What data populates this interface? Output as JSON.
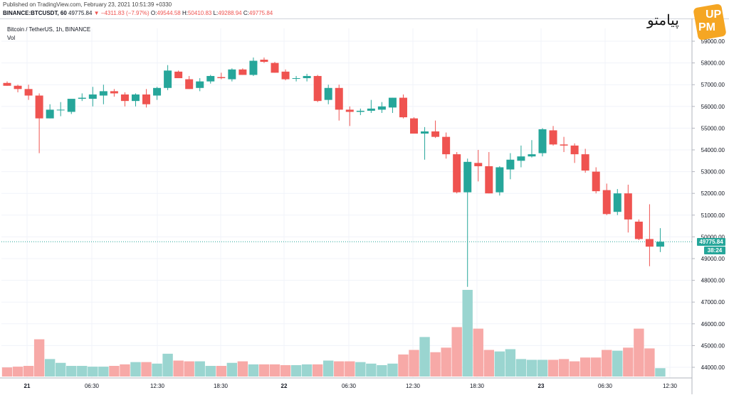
{
  "header": {
    "published": "Published on TradingView.com, February 23, 2021 10:51:39 +0330",
    "symbol": "BINANCE:BTCUSDT, 60",
    "last": "49775.84",
    "change": "▼ −4311.83 (−7.97%)",
    "open_label": "O:",
    "open": "49544.58",
    "high_label": "H:",
    "high": "50410.83",
    "low_label": "L:",
    "low": "49288.94",
    "close_label": "C:",
    "close": "49775.84"
  },
  "chart_title": "Bitcoin / TetherUS, 1h, BINANCE",
  "volume_label": "Vol",
  "price_badge": "49775.84",
  "countdown_badge": "38:24",
  "logo_text": "پیامتو",
  "logo_badge_top": "UP",
  "logo_badge_bottom": "PM",
  "colors": {
    "up": "#26a69a",
    "down": "#ef5350",
    "up_vol": "#9ad5d0",
    "down_vol": "#f7a9a7",
    "grid": "#f0f3fa",
    "axis_text": "#131722"
  },
  "chart_data": {
    "type": "candlestick",
    "y_ticks": [
      "59000.00",
      "58000.00",
      "57000.00",
      "56000.00",
      "55000.00",
      "54000.00",
      "53000.00",
      "52000.00",
      "51000.00",
      "50000.00",
      "49000.00",
      "48000.00",
      "47000.00",
      "46000.00",
      "45000.00",
      "44000.00"
    ],
    "x_ticks": [
      "21",
      "06:30",
      "12:30",
      "18:30",
      "22",
      "06:30",
      "12:30",
      "18:30",
      "23",
      "06:30",
      "12:30"
    ],
    "last_price": 49775.84,
    "candles": [
      {
        "o": 57080,
        "h": 57150,
        "l": 56950,
        "c": 56950,
        "v": 1.2
      },
      {
        "o": 56950,
        "h": 57000,
        "l": 56650,
        "c": 56800,
        "v": 1.3
      },
      {
        "o": 56800,
        "h": 57000,
        "l": 56300,
        "c": 56500,
        "v": 1.4
      },
      {
        "o": 56500,
        "h": 56600,
        "l": 53850,
        "c": 55450,
        "v": 4.9
      },
      {
        "o": 55450,
        "h": 56100,
        "l": 55450,
        "c": 55850,
        "v": 2.3
      },
      {
        "o": 55850,
        "h": 56200,
        "l": 55550,
        "c": 55850,
        "v": 1.8
      },
      {
        "o": 55750,
        "h": 56300,
        "l": 55650,
        "c": 56350,
        "v": 1.4
      },
      {
        "o": 56350,
        "h": 56600,
        "l": 56250,
        "c": 56400,
        "v": 1.4
      },
      {
        "o": 56350,
        "h": 56900,
        "l": 56000,
        "c": 56550,
        "v": 1.3
      },
      {
        "o": 56500,
        "h": 57000,
        "l": 56100,
        "c": 56700,
        "v": 1.3
      },
      {
        "o": 56700,
        "h": 56800,
        "l": 56450,
        "c": 56600,
        "v": 1.4
      },
      {
        "o": 56550,
        "h": 56650,
        "l": 56000,
        "c": 56250,
        "v": 1.6
      },
      {
        "o": 56250,
        "h": 56600,
        "l": 56000,
        "c": 56550,
        "v": 1.9
      },
      {
        "o": 56550,
        "h": 56800,
        "l": 55950,
        "c": 56100,
        "v": 1.9
      },
      {
        "o": 56500,
        "h": 56900,
        "l": 56300,
        "c": 56850,
        "v": 1.7
      },
      {
        "o": 56850,
        "h": 57900,
        "l": 56750,
        "c": 57650,
        "v": 3.0
      },
      {
        "o": 57600,
        "h": 57650,
        "l": 57300,
        "c": 57300,
        "v": 2.1
      },
      {
        "o": 57250,
        "h": 57400,
        "l": 56800,
        "c": 56800,
        "v": 2.0
      },
      {
        "o": 56850,
        "h": 57300,
        "l": 56700,
        "c": 57150,
        "v": 2.0
      },
      {
        "o": 57150,
        "h": 57450,
        "l": 57050,
        "c": 57400,
        "v": 1.4
      },
      {
        "o": 57350,
        "h": 57550,
        "l": 57250,
        "c": 57300,
        "v": 1.4
      },
      {
        "o": 57250,
        "h": 57750,
        "l": 57150,
        "c": 57700,
        "v": 1.8
      },
      {
        "o": 57700,
        "h": 57750,
        "l": 57450,
        "c": 57450,
        "v": 2.0
      },
      {
        "o": 57450,
        "h": 58250,
        "l": 57400,
        "c": 58100,
        "v": 1.6
      },
      {
        "o": 58150,
        "h": 58250,
        "l": 58000,
        "c": 58050,
        "v": 1.6
      },
      {
        "o": 58000,
        "h": 58050,
        "l": 57550,
        "c": 57550,
        "v": 1.6
      },
      {
        "o": 57600,
        "h": 57700,
        "l": 57200,
        "c": 57250,
        "v": 1.5
      },
      {
        "o": 57300,
        "h": 57400,
        "l": 57150,
        "c": 57300,
        "v": 1.5
      },
      {
        "o": 57300,
        "h": 57500,
        "l": 57150,
        "c": 57400,
        "v": 1.6
      },
      {
        "o": 57400,
        "h": 57450,
        "l": 56200,
        "c": 56250,
        "v": 1.6
      },
      {
        "o": 56300,
        "h": 57000,
        "l": 56100,
        "c": 56850,
        "v": 2.1
      },
      {
        "o": 56850,
        "h": 57000,
        "l": 55350,
        "c": 55850,
        "v": 2.0
      },
      {
        "o": 55850,
        "h": 56000,
        "l": 55100,
        "c": 55750,
        "v": 2.0
      },
      {
        "o": 55750,
        "h": 55900,
        "l": 55600,
        "c": 55800,
        "v": 1.9
      },
      {
        "o": 55800,
        "h": 56300,
        "l": 55700,
        "c": 55900,
        "v": 1.7
      },
      {
        "o": 55850,
        "h": 56200,
        "l": 55700,
        "c": 56000,
        "v": 1.5
      },
      {
        "o": 55950,
        "h": 56400,
        "l": 55700,
        "c": 56400,
        "v": 1.7
      },
      {
        "o": 56400,
        "h": 56550,
        "l": 55450,
        "c": 55500,
        "v": 2.9
      },
      {
        "o": 55450,
        "h": 55500,
        "l": 54800,
        "c": 54750,
        "v": 3.5
      },
      {
        "o": 54750,
        "h": 55050,
        "l": 53550,
        "c": 54850,
        "v": 5.2
      },
      {
        "o": 54850,
        "h": 55350,
        "l": 54550,
        "c": 54600,
        "v": 3.2
      },
      {
        "o": 54600,
        "h": 54800,
        "l": 53600,
        "c": 53800,
        "v": 3.8
      },
      {
        "o": 53800,
        "h": 53900,
        "l": 52000,
        "c": 52050,
        "v": 6.5
      },
      {
        "o": 52050,
        "h": 53600,
        "l": 47700,
        "c": 53450,
        "v": 11.4
      },
      {
        "o": 53400,
        "h": 54000,
        "l": 52550,
        "c": 53250,
        "v": 6.3
      },
      {
        "o": 53250,
        "h": 53900,
        "l": 52000,
        "c": 52000,
        "v": 3.5
      },
      {
        "o": 52050,
        "h": 53250,
        "l": 51900,
        "c": 53200,
        "v": 3.3
      },
      {
        "o": 53100,
        "h": 53850,
        "l": 52650,
        "c": 53550,
        "v": 3.6
      },
      {
        "o": 53500,
        "h": 54200,
        "l": 53200,
        "c": 53700,
        "v": 2.3
      },
      {
        "o": 53700,
        "h": 54450,
        "l": 53650,
        "c": 53800,
        "v": 2.2
      },
      {
        "o": 53850,
        "h": 55000,
        "l": 53700,
        "c": 54950,
        "v": 2.2
      },
      {
        "o": 54900,
        "h": 55100,
        "l": 54200,
        "c": 54250,
        "v": 2.2
      },
      {
        "o": 54250,
        "h": 54600,
        "l": 53900,
        "c": 54200,
        "v": 2.3
      },
      {
        "o": 54200,
        "h": 54300,
        "l": 53400,
        "c": 53800,
        "v": 2.0
      },
      {
        "o": 53800,
        "h": 54050,
        "l": 52950,
        "c": 53050,
        "v": 2.5
      },
      {
        "o": 53000,
        "h": 53200,
        "l": 52000,
        "c": 52100,
        "v": 2.5
      },
      {
        "o": 52150,
        "h": 52450,
        "l": 51000,
        "c": 51050,
        "v": 3.5
      },
      {
        "o": 51150,
        "h": 52200,
        "l": 51000,
        "c": 52000,
        "v": 3.4
      },
      {
        "o": 52000,
        "h": 52400,
        "l": 50200,
        "c": 50800,
        "v": 3.8
      },
      {
        "o": 50700,
        "h": 50800,
        "l": 49850,
        "c": 49900,
        "v": 6.3
      },
      {
        "o": 49900,
        "h": 51500,
        "l": 48650,
        "c": 49550,
        "v": 3.7
      },
      {
        "o": 49550,
        "h": 50400,
        "l": 49300,
        "c": 49775.84,
        "v": 1.1
      }
    ]
  }
}
